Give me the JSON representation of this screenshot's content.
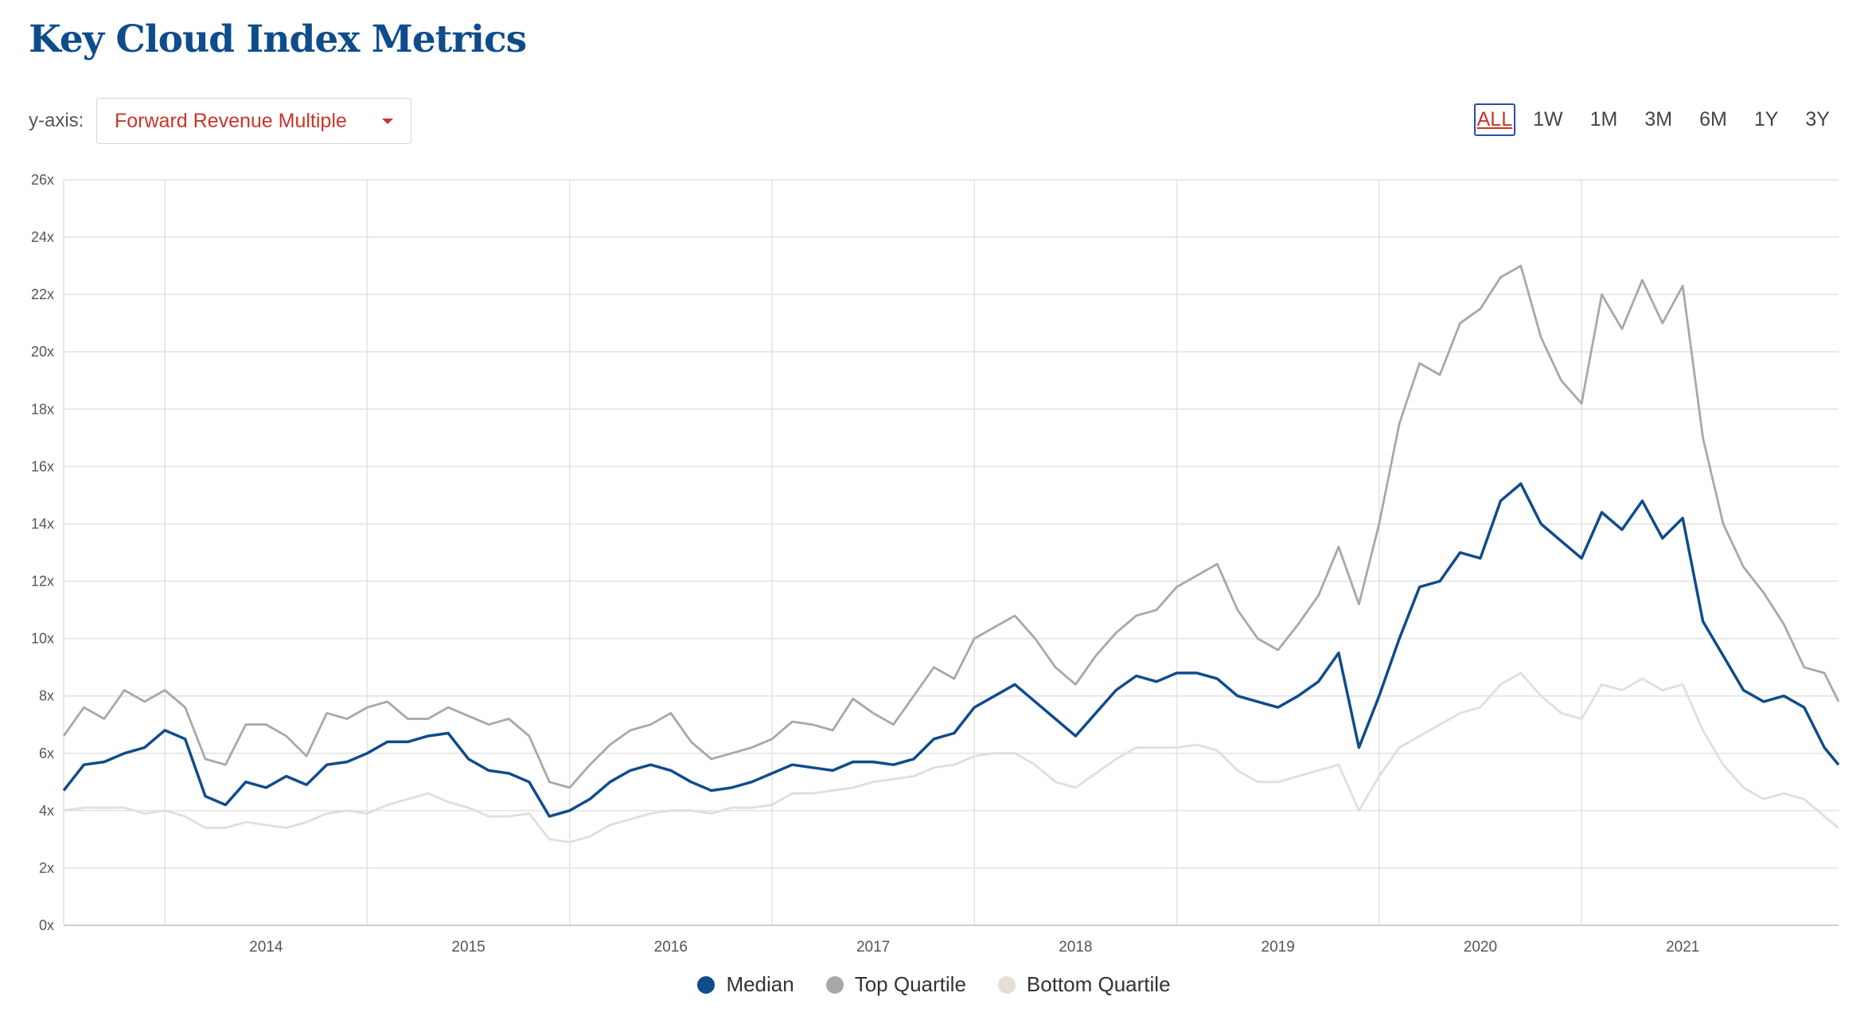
{
  "page": {
    "title": "Key Cloud Index Metrics",
    "yaxis_label": "y-axis:",
    "yaxis_selected": "Forward Revenue Multiple",
    "ranges": [
      "ALL",
      "1W",
      "1M",
      "3M",
      "6M",
      "1Y",
      "3Y"
    ],
    "active_range": "ALL"
  },
  "colors": {
    "median": "#0f4c8b",
    "top": "#a8a8a8",
    "bottom": "#e3ded6",
    "grid": "#e2e2e2",
    "accent": "#c8352a"
  },
  "chart_data": {
    "type": "line",
    "title": "Key Cloud Index Metrics",
    "xlabel": "",
    "ylabel": "Forward Revenue Multiple",
    "ylim": [
      0,
      26
    ],
    "xlim": [
      2013.5,
      2022.27
    ],
    "y_ticks": [
      0,
      2,
      4,
      6,
      8,
      10,
      12,
      14,
      16,
      18,
      20,
      22,
      24,
      26
    ],
    "y_tick_labels": [
      "0x",
      "2x",
      "4x",
      "6x",
      "8x",
      "10x",
      "12x",
      "14x",
      "16x",
      "18x",
      "20x",
      "22x",
      "24x",
      "26x"
    ],
    "x_tick_labels": [
      "2014",
      "2015",
      "2016",
      "2017",
      "2018",
      "2019",
      "2020",
      "2021"
    ],
    "x_tick_positions": [
      2014.0,
      2015.0,
      2016.0,
      2017.0,
      2018.0,
      2019.0,
      2020.0,
      2021.0
    ],
    "x_label_positions": [
      2014.5,
      2015.5,
      2016.5,
      2017.5,
      2018.5,
      2019.5,
      2020.5,
      2021.5
    ],
    "grid": true,
    "legend_position": "bottom",
    "x": [
      2013.5,
      2013.6,
      2013.7,
      2013.8,
      2013.9,
      2014.0,
      2014.1,
      2014.2,
      2014.3,
      2014.4,
      2014.5,
      2014.6,
      2014.7,
      2014.8,
      2014.9,
      2015.0,
      2015.1,
      2015.2,
      2015.3,
      2015.4,
      2015.5,
      2015.6,
      2015.7,
      2015.8,
      2015.9,
      2016.0,
      2016.1,
      2016.2,
      2016.3,
      2016.4,
      2016.5,
      2016.6,
      2016.7,
      2016.8,
      2016.9,
      2017.0,
      2017.1,
      2017.2,
      2017.3,
      2017.4,
      2017.5,
      2017.6,
      2017.7,
      2017.8,
      2017.9,
      2018.0,
      2018.1,
      2018.2,
      2018.3,
      2018.4,
      2018.5,
      2018.6,
      2018.7,
      2018.8,
      2018.9,
      2019.0,
      2019.1,
      2019.2,
      2019.3,
      2019.4,
      2019.5,
      2019.6,
      2019.7,
      2019.8,
      2019.9,
      2020.0,
      2020.1,
      2020.2,
      2020.3,
      2020.4,
      2020.5,
      2020.6,
      2020.7,
      2020.8,
      2020.9,
      2021.0,
      2021.1,
      2021.2,
      2021.3,
      2021.4,
      2021.5,
      2021.6,
      2021.7,
      2021.8,
      2021.9,
      2022.0,
      2022.1,
      2022.2,
      2022.27
    ],
    "series": [
      {
        "name": "Top Quartile",
        "color_key": "top",
        "values": [
          6.6,
          7.6,
          7.2,
          8.2,
          7.8,
          8.2,
          7.6,
          5.8,
          5.6,
          7.0,
          7.0,
          6.6,
          5.9,
          7.4,
          7.2,
          7.6,
          7.8,
          7.2,
          7.2,
          7.6,
          7.3,
          7.0,
          7.2,
          6.6,
          5.0,
          4.8,
          5.6,
          6.3,
          6.8,
          7.0,
          7.4,
          6.4,
          5.8,
          6.0,
          6.2,
          6.5,
          7.1,
          7.0,
          6.8,
          7.9,
          7.4,
          7.0,
          8.0,
          9.0,
          8.6,
          10.0,
          10.4,
          10.8,
          10.0,
          9.0,
          8.4,
          9.4,
          10.2,
          10.8,
          11.0,
          11.8,
          12.2,
          12.6,
          11.0,
          10.0,
          9.6,
          10.5,
          11.5,
          13.2,
          11.2,
          14.0,
          17.5,
          19.6,
          19.2,
          21.0,
          21.5,
          22.6,
          23.0,
          20.5,
          19.0,
          18.2,
          22.0,
          20.8,
          22.5,
          21.0,
          22.3,
          17.0,
          14.0,
          12.5,
          11.6,
          10.5,
          9.0,
          8.8,
          7.8
        ]
      },
      {
        "name": "Median",
        "color_key": "median",
        "values": [
          4.7,
          5.6,
          5.7,
          6.0,
          6.2,
          6.8,
          6.5,
          4.5,
          4.2,
          5.0,
          4.8,
          5.2,
          4.9,
          5.6,
          5.7,
          6.0,
          6.4,
          6.4,
          6.6,
          6.7,
          5.8,
          5.4,
          5.3,
          5.0,
          3.8,
          4.0,
          4.4,
          5.0,
          5.4,
          5.6,
          5.4,
          5.0,
          4.7,
          4.8,
          5.0,
          5.3,
          5.6,
          5.5,
          5.4,
          5.7,
          5.7,
          5.6,
          5.8,
          6.5,
          6.7,
          7.6,
          8.0,
          8.4,
          7.8,
          7.2,
          6.6,
          7.4,
          8.2,
          8.7,
          8.5,
          8.8,
          8.8,
          8.6,
          8.0,
          7.8,
          7.6,
          8.0,
          8.5,
          9.5,
          6.2,
          8.0,
          10.0,
          11.8,
          12.0,
          13.0,
          12.8,
          14.8,
          15.4,
          14.0,
          13.4,
          12.8,
          14.4,
          13.8,
          14.8,
          13.5,
          14.2,
          10.6,
          9.4,
          8.2,
          7.8,
          8.0,
          7.6,
          6.2,
          5.6
        ]
      },
      {
        "name": "Bottom Quartile",
        "color_key": "bottom",
        "values": [
          4.0,
          4.1,
          4.1,
          4.1,
          3.9,
          4.0,
          3.8,
          3.4,
          3.4,
          3.6,
          3.5,
          3.4,
          3.6,
          3.9,
          4.0,
          3.9,
          4.2,
          4.4,
          4.6,
          4.3,
          4.1,
          3.8,
          3.8,
          3.9,
          3.0,
          2.9,
          3.1,
          3.5,
          3.7,
          3.9,
          4.0,
          4.0,
          3.9,
          4.1,
          4.1,
          4.2,
          4.6,
          4.6,
          4.7,
          4.8,
          5.0,
          5.1,
          5.2,
          5.5,
          5.6,
          5.9,
          6.0,
          6.0,
          5.6,
          5.0,
          4.8,
          5.3,
          5.8,
          6.2,
          6.2,
          6.2,
          6.3,
          6.1,
          5.4,
          5.0,
          5.0,
          5.2,
          5.4,
          5.6,
          4.0,
          5.2,
          6.2,
          6.6,
          7.0,
          7.4,
          7.6,
          8.4,
          8.8,
          8.0,
          7.4,
          7.2,
          8.4,
          8.2,
          8.6,
          8.2,
          8.4,
          6.8,
          5.6,
          4.8,
          4.4,
          4.6,
          4.4,
          3.8,
          3.4
        ]
      }
    ]
  }
}
